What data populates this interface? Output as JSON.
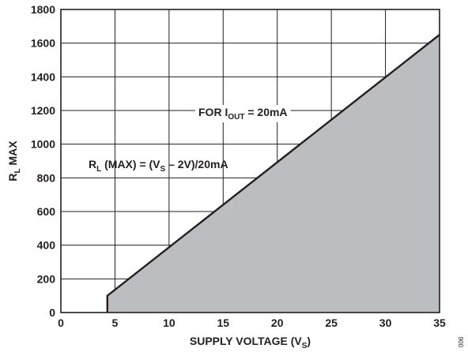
{
  "chart_data": {
    "type": "area",
    "xlabel": {
      "main": "SUPPLY VOLTAGE (V",
      "sub": "S",
      "end": ")"
    },
    "ylabel": {
      "main": "R",
      "sub": "L",
      "end": " MAX"
    },
    "xlim": [
      0,
      35
    ],
    "ylim": [
      0,
      1800
    ],
    "x_ticks": [
      0,
      5,
      10,
      15,
      20,
      25,
      30,
      35
    ],
    "y_ticks": [
      0,
      200,
      400,
      600,
      800,
      1000,
      1200,
      1400,
      1600,
      1800
    ],
    "grid": true,
    "series": [
      {
        "x": [
          4.3,
          4.3,
          35
        ],
        "y": [
          0,
          100,
          1650
        ]
      }
    ],
    "annotations": {
      "formula": {
        "parts": [
          "R",
          "L",
          " (MAX) = (V",
          "S",
          " – 2V)/20mA"
        ]
      },
      "condition": {
        "parts": [
          "FOR I",
          "OUT",
          " = 20mA"
        ]
      }
    },
    "figure_id": "006"
  }
}
